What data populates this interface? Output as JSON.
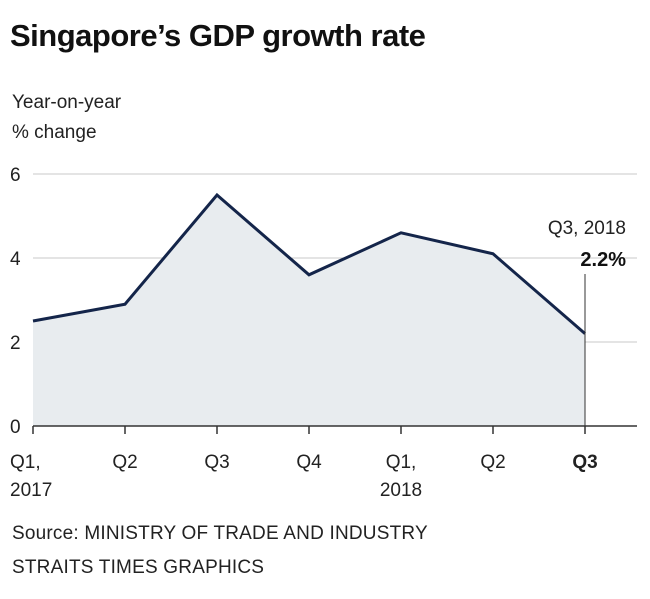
{
  "chart_data": {
    "type": "area",
    "title": "Singapore’s GDP growth rate",
    "ylabel_line1": "Year-on-year",
    "ylabel_line2": "% change",
    "categories": [
      "Q1, 2017",
      "Q2",
      "Q3",
      "Q4",
      "Q1, 2018",
      "Q2",
      "Q3"
    ],
    "tick_labels": [
      {
        "line1": "Q1,",
        "line2": "2017",
        "bold": false
      },
      {
        "line1": "Q2",
        "line2": "",
        "bold": false
      },
      {
        "line1": "Q3",
        "line2": "",
        "bold": false
      },
      {
        "line1": "Q4",
        "line2": "",
        "bold": false
      },
      {
        "line1": "Q1,",
        "line2": "2018",
        "bold": false
      },
      {
        "line1": "Q2",
        "line2": "",
        "bold": false
      },
      {
        "line1": "Q3",
        "line2": "",
        "bold": true
      }
    ],
    "values": [
      2.5,
      2.9,
      5.5,
      3.6,
      4.6,
      4.1,
      2.2
    ],
    "ylim": [
      0,
      6
    ],
    "yticks": [
      0,
      2,
      4,
      6
    ],
    "grid": true,
    "annotation": {
      "label": "Q3, 2018",
      "value_text": "2.2%",
      "index": 6
    },
    "colors": {
      "line": "#14254a",
      "fill": "#e8ecef",
      "grid": "#c8c8c8",
      "axis": "#333333"
    }
  },
  "source_line1": "Source: MINISTRY OF TRADE AND INDUSTRY",
  "source_line2": "STRAITS TIMES GRAPHICS"
}
